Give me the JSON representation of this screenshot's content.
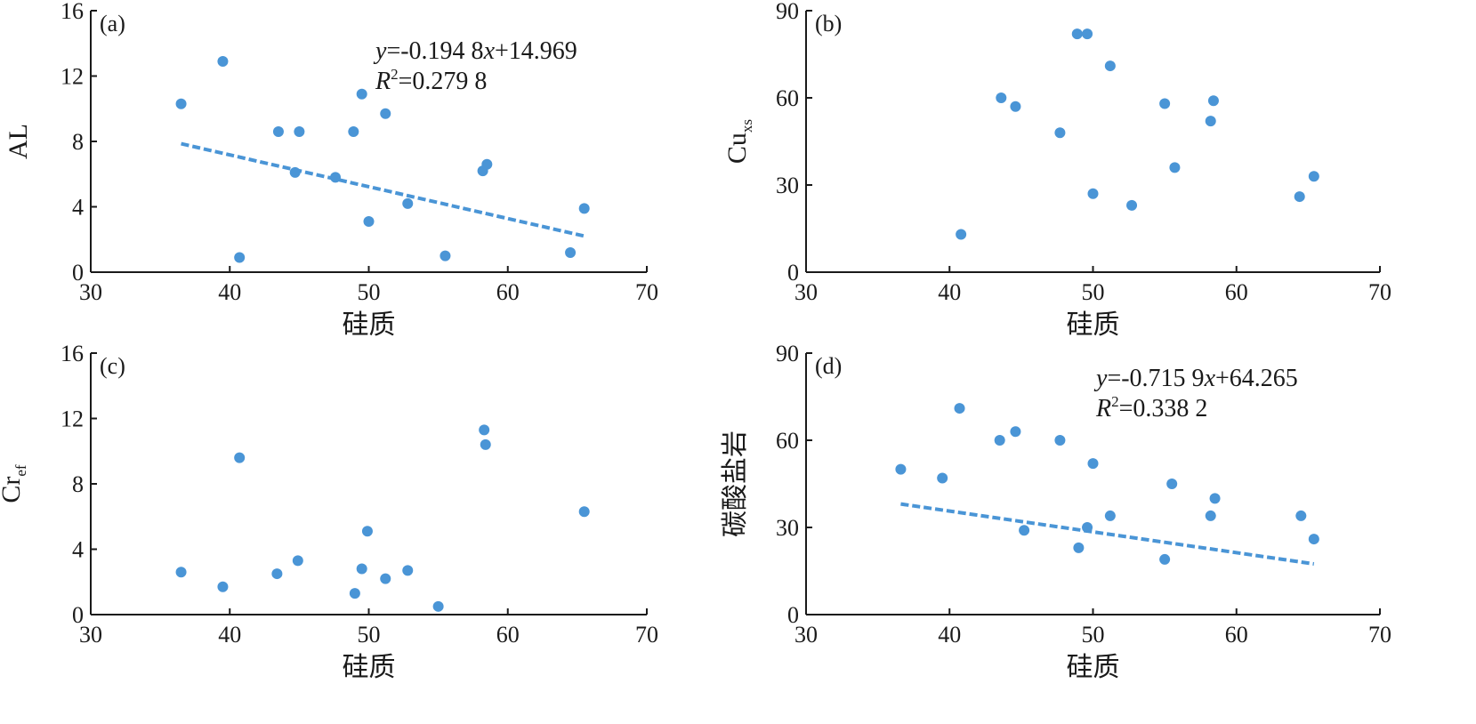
{
  "colors": {
    "point": "#4a95d6",
    "fit_line": "#4a95d6",
    "axis": "#1a1a1a"
  },
  "chart_data": [
    {
      "type": "scatter",
      "panel_label": "(a)",
      "xlabel": "硅质",
      "ylabel": "AL",
      "ylabel_sub": "",
      "xlim": [
        30,
        70
      ],
      "ylim": [
        0,
        16
      ],
      "xticks": [
        30,
        40,
        50,
        60,
        70
      ],
      "yticks": [
        0,
        4,
        8,
        12,
        16
      ],
      "points": [
        [
          36.5,
          10.3
        ],
        [
          39.5,
          12.9
        ],
        [
          40.7,
          0.9
        ],
        [
          43.5,
          8.6
        ],
        [
          44.7,
          6.1
        ],
        [
          45.0,
          8.6
        ],
        [
          47.6,
          5.8
        ],
        [
          48.9,
          8.6
        ],
        [
          49.5,
          10.9
        ],
        [
          50.0,
          3.1
        ],
        [
          51.2,
          9.7
        ],
        [
          52.8,
          4.2
        ],
        [
          55.5,
          1.0
        ],
        [
          58.2,
          6.2
        ],
        [
          58.5,
          6.6
        ],
        [
          64.5,
          1.2
        ],
        [
          65.5,
          3.9
        ]
      ],
      "fit": {
        "slope": -0.1948,
        "intercept": 14.969,
        "x_range": [
          36.5,
          65.5
        ]
      },
      "equation": [
        "y=-0.194 8x+14.969",
        "R2=0.279 8"
      ]
    },
    {
      "type": "scatter",
      "panel_label": "(b)",
      "xlabel": "硅质",
      "ylabel": "Cu",
      "ylabel_sub": "xs",
      "xlim": [
        30,
        70
      ],
      "ylim": [
        0,
        90
      ],
      "xticks": [
        30,
        40,
        50,
        60,
        70
      ],
      "yticks": [
        0,
        30,
        60,
        90
      ],
      "points": [
        [
          40.8,
          13
        ],
        [
          43.6,
          60
        ],
        [
          44.6,
          57
        ],
        [
          47.7,
          48
        ],
        [
          48.9,
          82
        ],
        [
          49.6,
          82
        ],
        [
          50.0,
          27
        ],
        [
          51.2,
          71
        ],
        [
          52.7,
          23
        ],
        [
          55.0,
          58
        ],
        [
          55.7,
          36
        ],
        [
          58.2,
          52
        ],
        [
          58.4,
          59
        ],
        [
          64.4,
          26
        ],
        [
          65.4,
          33
        ]
      ],
      "fit": null,
      "equation": []
    },
    {
      "type": "scatter",
      "panel_label": "(c)",
      "xlabel": "硅质",
      "ylabel": "Cr",
      "ylabel_sub": "ef",
      "xlim": [
        30,
        70
      ],
      "ylim": [
        0,
        16
      ],
      "xticks": [
        30,
        40,
        50,
        60,
        70
      ],
      "yticks": [
        0,
        4,
        8,
        12,
        16
      ],
      "points": [
        [
          36.5,
          2.6
        ],
        [
          39.5,
          1.7
        ],
        [
          40.7,
          9.6
        ],
        [
          43.4,
          2.5
        ],
        [
          44.9,
          3.3
        ],
        [
          49.0,
          1.3
        ],
        [
          49.5,
          2.8
        ],
        [
          49.9,
          5.1
        ],
        [
          51.2,
          2.2
        ],
        [
          52.8,
          2.7
        ],
        [
          55.0,
          0.5
        ],
        [
          58.3,
          11.3
        ],
        [
          58.4,
          10.4
        ],
        [
          65.5,
          6.3
        ]
      ],
      "fit": null,
      "equation": []
    },
    {
      "type": "scatter",
      "panel_label": "(d)",
      "xlabel": "硅质",
      "ylabel": "碳酸盐岩",
      "ylabel_sub": "",
      "xlim": [
        30,
        70
      ],
      "ylim": [
        0,
        90
      ],
      "xticks": [
        30,
        40,
        50,
        60,
        70
      ],
      "yticks": [
        0,
        30,
        60,
        90
      ],
      "points": [
        [
          36.6,
          50
        ],
        [
          39.5,
          47
        ],
        [
          40.7,
          71
        ],
        [
          43.5,
          60
        ],
        [
          44.6,
          63
        ],
        [
          45.2,
          29
        ],
        [
          47.7,
          60
        ],
        [
          49.0,
          23
        ],
        [
          49.6,
          30
        ],
        [
          50.0,
          52
        ],
        [
          51.2,
          34
        ],
        [
          55.0,
          19
        ],
        [
          55.5,
          45
        ],
        [
          58.2,
          34
        ],
        [
          58.5,
          40
        ],
        [
          64.5,
          34
        ],
        [
          65.4,
          26
        ]
      ],
      "fit": {
        "slope": -0.7159,
        "intercept": 64.265,
        "x_range": [
          36.6,
          65.4
        ]
      },
      "equation": [
        "y=-0.715 9x+64.265",
        "R2=0.338 2"
      ]
    }
  ]
}
